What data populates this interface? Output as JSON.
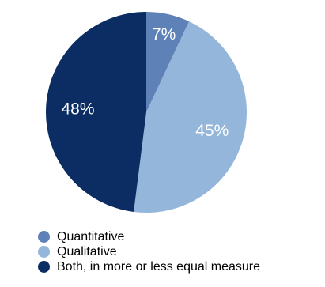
{
  "chart_data": {
    "type": "pie",
    "title": "",
    "slices": [
      {
        "label": "Quantitative",
        "value": 7,
        "display": "7%",
        "color": "#5e82b8"
      },
      {
        "label": "Qualitative",
        "value": 45,
        "display": "45%",
        "color": "#93b6da"
      },
      {
        "label": "Both, in more or less equal measure",
        "value": 48,
        "display": "48%",
        "color": "#0b2d63"
      }
    ],
    "start_angle": "12 o'clock",
    "direction": "clockwise",
    "legend_position": "bottom-left"
  },
  "legend": {
    "items": [
      {
        "label": "Quantitative",
        "color": "#5e82b8"
      },
      {
        "label": "Qualitative",
        "color": "#93b6da"
      },
      {
        "label": "Both, in more or less equal measure",
        "color": "#0b2d63"
      }
    ]
  }
}
